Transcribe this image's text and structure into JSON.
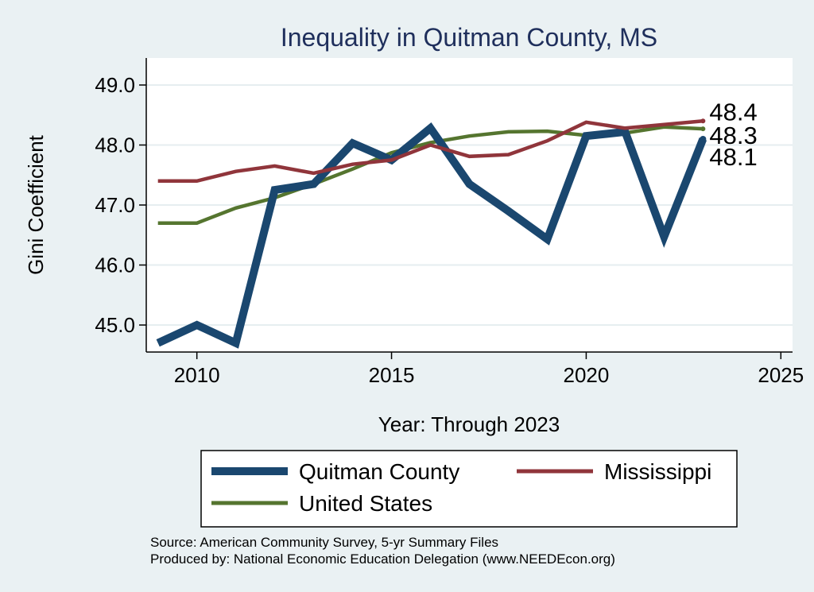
{
  "chart_data": {
    "type": "line",
    "title": "Inequality in Quitman County, MS",
    "xlabel": "Year: Through 2023",
    "ylabel": "Gini Coefficient",
    "xlim": [
      2008.7,
      2025.3
    ],
    "ylim": [
      44.55,
      49.45
    ],
    "xticks": [
      2010,
      2015,
      2020,
      2025
    ],
    "yticks": [
      45.0,
      46.0,
      47.0,
      48.0,
      49.0
    ],
    "ytick_labels": [
      "45.0",
      "46.0",
      "47.0",
      "48.0",
      "49.0"
    ],
    "x": [
      2009,
      2010,
      2011,
      2012,
      2013,
      2014,
      2015,
      2016,
      2017,
      2018,
      2019,
      2020,
      2021,
      2022,
      2023
    ],
    "series": [
      {
        "name": "Quitman County",
        "color": "#1a476f",
        "values": [
          44.7,
          45.0,
          44.7,
          47.25,
          47.35,
          48.03,
          47.75,
          48.28,
          47.35,
          46.9,
          46.43,
          48.15,
          48.22,
          46.47,
          48.1
        ],
        "end_label": "48.1"
      },
      {
        "name": "Mississippi",
        "color": "#90353b",
        "values": [
          47.4,
          47.4,
          47.56,
          47.65,
          47.53,
          47.68,
          47.75,
          48.0,
          47.81,
          47.84,
          48.07,
          48.38,
          48.28,
          48.34,
          48.4
        ],
        "end_label": "48.4"
      },
      {
        "name": "United States",
        "color": "#55752f",
        "values": [
          46.7,
          46.7,
          46.95,
          47.12,
          47.35,
          47.6,
          47.87,
          48.04,
          48.15,
          48.22,
          48.23,
          48.16,
          48.2,
          48.3,
          48.27
        ],
        "end_label": "48.3"
      }
    ],
    "grid": true
  },
  "source": {
    "line1": "Source: American Community Survey, 5-yr Summary Files",
    "line2": "Produced by: National Economic Education Delegation (www.NEEDEcon.org)"
  }
}
